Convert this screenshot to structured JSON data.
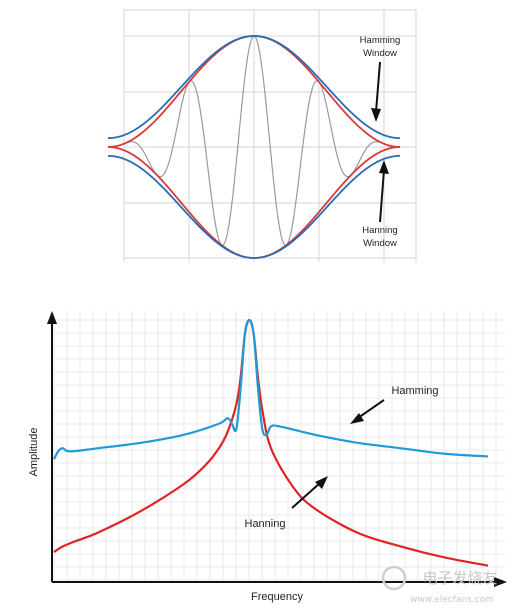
{
  "chart_data": [
    {
      "type": "line",
      "title": "",
      "xlabel": "",
      "ylabel": "",
      "grid": true,
      "xlim": [
        -1,
        1
      ],
      "ylim": [
        -1,
        1
      ],
      "annotations": [
        {
          "text_lines": [
            "Hamming",
            "Window"
          ],
          "target": "Hamming window curve near right end, upper envelope"
        },
        {
          "text_lines": [
            "Hanning",
            "Window"
          ],
          "target": "Hanning window curve near right end, lower envelope"
        }
      ],
      "series": [
        {
          "role": "hamming_envelope",
          "color": "#2c6cb7",
          "formula": "0.54 + 0.46*cos(pi*x)",
          "mirrored": true
        },
        {
          "role": "hanning_envelope",
          "color": "#d83a3a",
          "formula": "0.5 + 0.5*cos(pi*x)",
          "mirrored": true
        },
        {
          "role": "windowed_sine",
          "color": "#9a9a9a",
          "cycles": 4.5
        }
      ],
      "colors": {
        "hamming": "#2c6cb7",
        "hanning": "#d83a3a",
        "signal": "#9a9a9a",
        "grid": "#d6d6d6"
      }
    },
    {
      "type": "line",
      "title": "",
      "xlabel": "Frequency",
      "ylabel": "Amplitude",
      "grid": true,
      "xlim": [
        0,
        1
      ],
      "ylim": [
        0,
        1
      ],
      "annotations": [
        {
          "text": "Hamming",
          "target": "blue Hamming spectrum right tail"
        },
        {
          "text": "Hanning",
          "target": "red Hanning spectrum right tail"
        }
      ],
      "series": [
        {
          "role": "hamming_spectrum",
          "color": "#1f9bd7",
          "x": [
            0.0,
            0.01,
            0.02,
            0.03,
            0.05,
            0.1,
            0.2,
            0.3,
            0.38,
            0.4,
            0.41,
            0.42,
            0.43,
            0.44,
            0.45,
            0.46,
            0.47,
            0.48,
            0.49,
            0.5,
            0.52,
            0.6,
            0.7,
            0.8,
            0.9,
            1.0
          ],
          "y": [
            0.46,
            0.49,
            0.5,
            0.49,
            0.49,
            0.5,
            0.52,
            0.55,
            0.59,
            0.61,
            0.59,
            0.57,
            0.72,
            0.92,
            0.97,
            0.92,
            0.72,
            0.57,
            0.55,
            0.58,
            0.58,
            0.55,
            0.52,
            0.5,
            0.48,
            0.47
          ]
        },
        {
          "role": "hanning_spectrum",
          "color": "#e02424",
          "x": [
            0.0,
            0.02,
            0.05,
            0.1,
            0.2,
            0.3,
            0.35,
            0.38,
            0.4,
            0.42,
            0.43,
            0.44,
            0.45,
            0.46,
            0.47,
            0.48,
            0.5,
            0.55,
            0.6,
            0.7,
            0.8,
            0.9,
            1.0
          ],
          "y": [
            0.12,
            0.14,
            0.16,
            0.19,
            0.27,
            0.37,
            0.44,
            0.5,
            0.56,
            0.66,
            0.76,
            0.92,
            0.97,
            0.92,
            0.76,
            0.64,
            0.5,
            0.36,
            0.28,
            0.19,
            0.14,
            0.1,
            0.07
          ]
        }
      ],
      "colors": {
        "hamming": "#1f9bd7",
        "hanning": "#e02424",
        "axes": "#111111",
        "grid": "#e4e4e4"
      }
    }
  ],
  "watermark": {
    "line1": "电子发烧友",
    "line2": "www.elecfans.com"
  }
}
